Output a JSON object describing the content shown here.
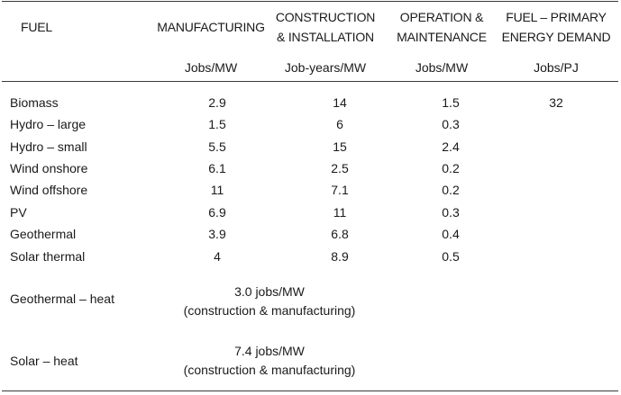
{
  "columns": {
    "fuel": "FUEL",
    "manufacturing": "MANUFACTURING",
    "construction_line1": "CONSTRUCTION",
    "construction_line2": "& INSTALLATION",
    "operation_line1": "OPERATION &",
    "operation_line2": "MAINTENANCE",
    "fuel_pe_line1": "FUEL – PRIMARY",
    "fuel_pe_line2": "ENERGY DEMAND"
  },
  "units": {
    "manufacturing": "Jobs/MW",
    "construction": "Job-years/MW",
    "operation": "Jobs/MW",
    "fuel_pe": "Jobs/PJ"
  },
  "rows": [
    {
      "fuel": "Biomass",
      "manufacturing": "2.9",
      "construction": "14",
      "operation": "1.5",
      "fuel_pe": "32"
    },
    {
      "fuel": "Hydro – large",
      "manufacturing": "1.5",
      "construction": "6",
      "operation": "0.3",
      "fuel_pe": ""
    },
    {
      "fuel": "Hydro – small",
      "manufacturing": "5.5",
      "construction": "15",
      "operation": "2.4",
      "fuel_pe": ""
    },
    {
      "fuel": "Wind onshore",
      "manufacturing": "6.1",
      "construction": "2.5",
      "operation": "0.2",
      "fuel_pe": ""
    },
    {
      "fuel": "Wind offshore",
      "manufacturing": "11",
      "construction": "7.1",
      "operation": "0.2",
      "fuel_pe": ""
    },
    {
      "fuel": "PV",
      "manufacturing": "6.9",
      "construction": "11",
      "operation": "0.3",
      "fuel_pe": ""
    },
    {
      "fuel": "Geothermal",
      "manufacturing": "3.9",
      "construction": "6.8",
      "operation": "0.4",
      "fuel_pe": ""
    },
    {
      "fuel": "Solar thermal",
      "manufacturing": "4",
      "construction": "8.9",
      "operation": "0.5",
      "fuel_pe": ""
    }
  ],
  "heat_rows": [
    {
      "fuel": "Geothermal – heat",
      "value": "3.0 jobs/MW",
      "note": "(construction & manufacturing)"
    },
    {
      "fuel": "Solar – heat",
      "value": "7.4 jobs/MW",
      "note": "(construction & manufacturing)"
    }
  ]
}
